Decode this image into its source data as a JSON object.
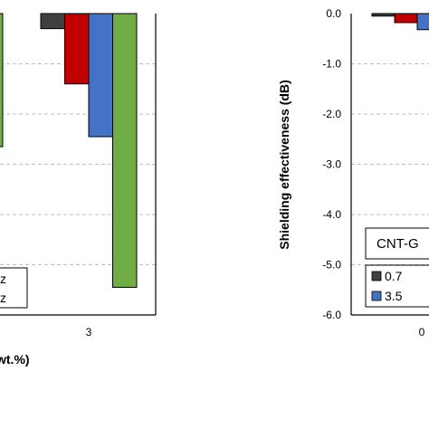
{
  "chart_data": [
    {
      "type": "bar",
      "panel": "left",
      "categories": [
        "3"
      ],
      "series": [
        {
          "values": [
            -0.3
          ],
          "color": "#404040"
        },
        {
          "values": [
            -1.4
          ],
          "color": "#c00000"
        },
        {
          "values": [
            -2.45
          ],
          "color": "#4472c4"
        },
        {
          "values": [
            -5.45
          ],
          "color": "#70ad47"
        }
      ],
      "partial_bar": {
        "values": [
          -2.65
        ],
        "color": "#70ad47"
      },
      "legend_fragments": [
        "z",
        "z"
      ],
      "xlabel_fragment": "wt.%)",
      "grid": true
    },
    {
      "type": "bar",
      "panel": "right",
      "ylabel": "Shielding effectiveness (dB)",
      "ylim": [
        -6.0,
        0.0
      ],
      "yticks": [
        "0.0",
        "-1.0",
        "-2.0",
        "-3.0",
        "-4.0",
        "-5.0",
        "-6.0"
      ],
      "categories": [
        "0"
      ],
      "series": [
        {
          "values": [
            -0.05
          ],
          "color": "#404040"
        },
        {
          "values": [
            -0.18
          ],
          "color": "#c00000"
        },
        {
          "values": [
            -0.32
          ],
          "color": "#4472c4"
        }
      ],
      "legend_title": "CNT-G",
      "legend_entries": [
        {
          "label": "0.7",
          "color": "#404040"
        },
        {
          "label": "3.5",
          "color": "#4472c4"
        }
      ],
      "grid": true
    }
  ]
}
